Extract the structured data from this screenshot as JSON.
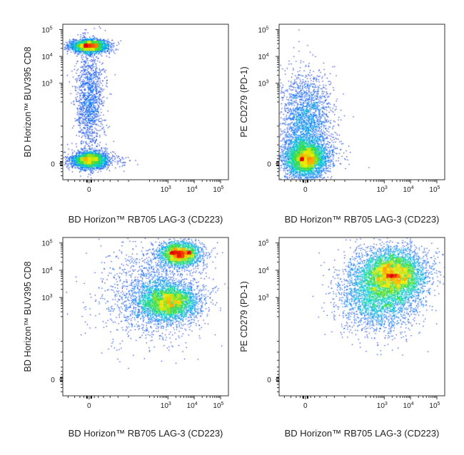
{
  "chart_data": [
    {
      "type": "scatter",
      "panel": "top-left",
      "xlabel": "BD Horizon™ RB705 LAG-3 (CD223)",
      "ylabel": "BD Horizon™ BUV395 CD8",
      "x_scale": "biexponential",
      "y_scale": "biexponential",
      "x_ticks": [
        {
          "v": 0,
          "base": "0",
          "exp": ""
        },
        {
          "v": 3,
          "base": "10",
          "exp": "3"
        },
        {
          "v": 4,
          "base": "10",
          "exp": "4"
        },
        {
          "v": 5,
          "base": "10",
          "exp": "5"
        }
      ],
      "y_ticks": [
        {
          "v": 0,
          "base": "0",
          "exp": ""
        },
        {
          "v": 3,
          "base": "10",
          "exp": "3"
        },
        {
          "v": 4,
          "base": "10",
          "exp": "4"
        },
        {
          "v": 5,
          "base": "10",
          "exp": "5"
        }
      ],
      "xlim": [
        -1.0,
        5.3
      ],
      "ylim": [
        -0.6,
        5.2
      ],
      "clusters": [
        {
          "cx": 0.0,
          "cy": 4.4,
          "sx": 0.35,
          "sy": 0.12,
          "n": 2600
        },
        {
          "cx": 0.0,
          "cy": 0.15,
          "sx": 0.35,
          "sy": 0.15,
          "n": 2600
        },
        {
          "cx": 0.0,
          "cy": 2.3,
          "sx": 0.28,
          "sy": 1.1,
          "n": 1400
        },
        {
          "cx": 1.2,
          "cy": 0.1,
          "sx": 0.25,
          "sy": 0.12,
          "n": 40
        }
      ]
    },
    {
      "type": "scatter",
      "panel": "top-right",
      "xlabel": "BD Horizon™ RB705 LAG-3 (CD223)",
      "ylabel": "PE CD279 (PD-1)",
      "x_scale": "biexponential",
      "y_scale": "biexponential",
      "x_ticks": [
        {
          "v": 0,
          "base": "0",
          "exp": ""
        },
        {
          "v": 3,
          "base": "10",
          "exp": "3"
        },
        {
          "v": 4,
          "base": "10",
          "exp": "4"
        },
        {
          "v": 5,
          "base": "10",
          "exp": "5"
        }
      ],
      "y_ticks": [
        {
          "v": 0,
          "base": "0",
          "exp": ""
        },
        {
          "v": 3,
          "base": "10",
          "exp": "3"
        },
        {
          "v": 4,
          "base": "10",
          "exp": "4"
        },
        {
          "v": 5,
          "base": "10",
          "exp": "5"
        }
      ],
      "xlim": [
        -1.0,
        5.3
      ],
      "ylim": [
        -0.6,
        5.2
      ],
      "clusters": [
        {
          "cx": 0.0,
          "cy": 0.2,
          "sx": 0.4,
          "sy": 0.35,
          "n": 3800
        },
        {
          "cx": 0.0,
          "cy": 1.6,
          "sx": 0.5,
          "sy": 0.9,
          "n": 2200
        },
        {
          "cx": 1.3,
          "cy": 0.3,
          "sx": 0.3,
          "sy": 0.3,
          "n": 25
        }
      ]
    },
    {
      "type": "scatter",
      "panel": "bottom-left",
      "xlabel": "BD Horizon™ RB705 LAG-3 (CD223)",
      "ylabel": "BD Horizon™ BUV395 CD8",
      "x_scale": "biexponential",
      "y_scale": "biexponential",
      "x_ticks": [
        {
          "v": 0,
          "base": "0",
          "exp": ""
        },
        {
          "v": 3,
          "base": "10",
          "exp": "3"
        },
        {
          "v": 4,
          "base": "10",
          "exp": "4"
        },
        {
          "v": 5,
          "base": "10",
          "exp": "5"
        }
      ],
      "y_ticks": [
        {
          "v": 0,
          "base": "0",
          "exp": ""
        },
        {
          "v": 3,
          "base": "10",
          "exp": "3"
        },
        {
          "v": 4,
          "base": "10",
          "exp": "4"
        },
        {
          "v": 5,
          "base": "10",
          "exp": "5"
        }
      ],
      "xlim": [
        -1.0,
        5.3
      ],
      "ylim": [
        -0.6,
        5.2
      ],
      "clusters": [
        {
          "cx": 3.45,
          "cy": 4.6,
          "sx": 0.4,
          "sy": 0.22,
          "n": 2400
        },
        {
          "cx": 3.0,
          "cy": 2.85,
          "sx": 0.55,
          "sy": 0.35,
          "n": 3400
        },
        {
          "cx": 2.4,
          "cy": 3.2,
          "sx": 1.0,
          "sy": 0.9,
          "n": 1500
        }
      ]
    },
    {
      "type": "scatter",
      "panel": "bottom-right",
      "xlabel": "BD Horizon™ RB705 LAG-3 (CD223)",
      "ylabel": "PE CD279 (PD-1)",
      "x_scale": "biexponential",
      "y_scale": "biexponential",
      "x_ticks": [
        {
          "v": 0,
          "base": "0",
          "exp": ""
        },
        {
          "v": 3,
          "base": "10",
          "exp": "3"
        },
        {
          "v": 4,
          "base": "10",
          "exp": "4"
        },
        {
          "v": 5,
          "base": "10",
          "exp": "5"
        }
      ],
      "y_ticks": [
        {
          "v": 0,
          "base": "0",
          "exp": ""
        },
        {
          "v": 3,
          "base": "10",
          "exp": "3"
        },
        {
          "v": 4,
          "base": "10",
          "exp": "4"
        },
        {
          "v": 5,
          "base": "10",
          "exp": "5"
        }
      ],
      "xlim": [
        -1.0,
        5.3
      ],
      "ylim": [
        -0.6,
        5.2
      ],
      "clusters": [
        {
          "cx": 3.4,
          "cy": 3.9,
          "sx": 0.6,
          "sy": 0.45,
          "n": 3600
        },
        {
          "cx": 2.8,
          "cy": 3.2,
          "sx": 0.75,
          "sy": 0.7,
          "n": 3400
        }
      ]
    }
  ]
}
